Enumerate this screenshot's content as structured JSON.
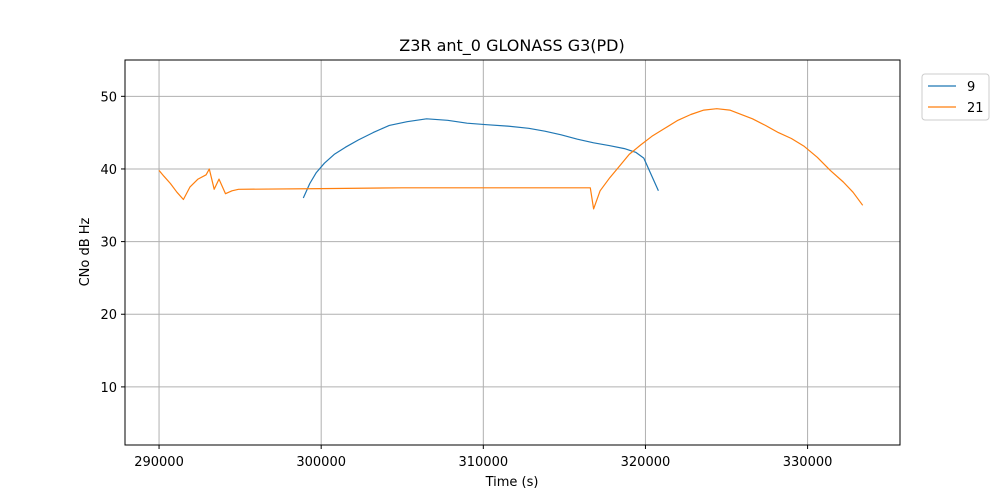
{
  "chart_data": {
    "type": "line",
    "title": "Z3R ant_0 GLONASS G3(PD)",
    "xlabel": "Time (s)",
    "ylabel": "CNo dB Hz",
    "xlim": [
      287900,
      335700
    ],
    "ylim": [
      2,
      55
    ],
    "xticks": [
      290000,
      300000,
      310000,
      320000,
      330000
    ],
    "xtick_labels": [
      "290000",
      "300000",
      "310000",
      "320000",
      "330000"
    ],
    "yticks": [
      10,
      20,
      30,
      40,
      50
    ],
    "ytick_labels": [
      "10",
      "20",
      "30",
      "40",
      "50"
    ],
    "grid": true,
    "legend_position": "outside-top-right",
    "series": [
      {
        "name": "9",
        "color": "#1f77b4",
        "x": [
          298900,
          299300,
          299700,
          300200,
          300800,
          301500,
          302300,
          303200,
          304200,
          305300,
          306500,
          307800,
          309000,
          310200,
          311500,
          312800,
          313800,
          314800,
          315800,
          316800,
          317800,
          318700,
          319400,
          319900,
          320400,
          320800
        ],
        "y": [
          36.0,
          38.0,
          39.5,
          40.8,
          42.0,
          43.0,
          44.0,
          45.0,
          46.0,
          46.5,
          46.9,
          46.7,
          46.3,
          46.1,
          45.9,
          45.6,
          45.2,
          44.7,
          44.1,
          43.6,
          43.2,
          42.8,
          42.3,
          41.5,
          39.0,
          37.0
        ]
      },
      {
        "name": "21",
        "color": "#ff7f0e",
        "x": [
          290000,
          290300,
          290700,
          291100,
          291500,
          291900,
          292400,
          292900,
          293100,
          293400,
          293700,
          294100,
          294500,
          294900,
          300000,
          305000,
          310000,
          316600,
          316800,
          317200,
          317800,
          318400,
          319000,
          319700,
          320400,
          321200,
          322000,
          322800,
          323600,
          324400,
          325200,
          325800,
          326600,
          327400,
          328200,
          329000,
          329800,
          330600,
          331400,
          332200,
          332800,
          333400
        ],
        "y": [
          39.8,
          39.0,
          38.0,
          36.8,
          35.8,
          37.5,
          38.6,
          39.2,
          40.0,
          37.2,
          38.6,
          36.6,
          37.0,
          37.2,
          37.3,
          37.4,
          37.4,
          37.4,
          34.5,
          37.0,
          38.8,
          40.4,
          42.0,
          43.3,
          44.5,
          45.6,
          46.7,
          47.5,
          48.1,
          48.3,
          48.1,
          47.6,
          46.9,
          46.0,
          45.0,
          44.2,
          43.1,
          41.6,
          39.8,
          38.2,
          36.8,
          35.0
        ]
      }
    ]
  }
}
